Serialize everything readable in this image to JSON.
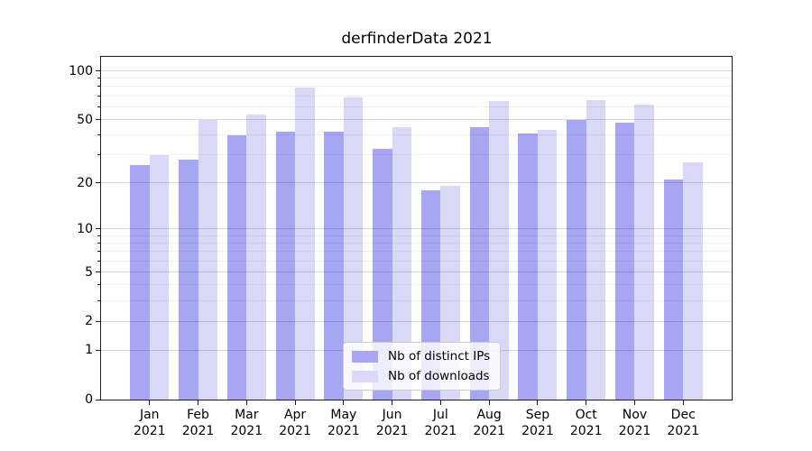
{
  "title": "derfinderData 2021",
  "chart_data": {
    "type": "bar",
    "title": "derfinderData 2021",
    "categories": [
      "Jan",
      "Feb",
      "Mar",
      "Apr",
      "May",
      "Jun",
      "Jul",
      "Aug",
      "Sep",
      "Oct",
      "Nov",
      "Dec"
    ],
    "category_year_line": "2021",
    "series": [
      {
        "name": "Nb of distinct IPs",
        "color": "#a6a6f2",
        "values": [
          26,
          28,
          40,
          42,
          42,
          33,
          18,
          45,
          41,
          50,
          48,
          21
        ]
      },
      {
        "name": "Nb of downloads",
        "color": "#d9d9f7",
        "values": [
          30,
          50,
          54,
          79,
          69,
          45,
          19,
          65,
          43,
          66,
          62,
          27
        ]
      }
    ],
    "xlabel": "",
    "ylabel": "",
    "y_scale": "log1p",
    "y_ticks_major": [
      0,
      1,
      2,
      5,
      10,
      20,
      50,
      100
    ],
    "y_ticks_minor": [
      3,
      4,
      6,
      7,
      8,
      9,
      30,
      40,
      60,
      70,
      80,
      90
    ],
    "ylim": [
      0,
      122
    ],
    "grid": "major+minor horizontal, drawn above bars",
    "legend": {
      "position": "lower center, inside plot",
      "entries": [
        "Nb of distinct IPs",
        "Nb of downloads"
      ]
    }
  }
}
